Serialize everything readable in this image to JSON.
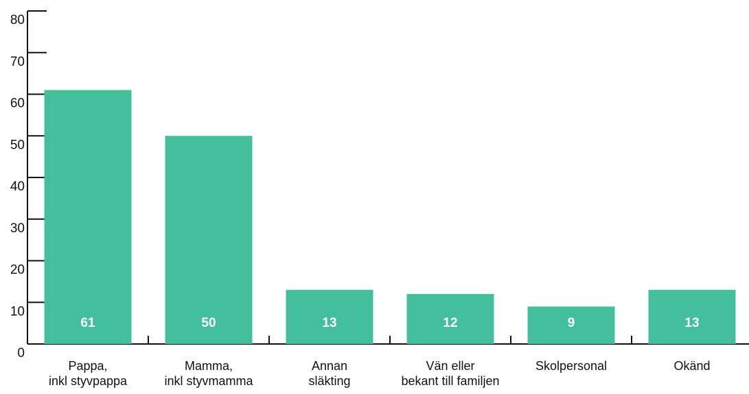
{
  "chart_data": {
    "type": "bar",
    "categories": [
      "Pappa,\ninkl styvpappa",
      "Mamma,\ninkl styvmamma",
      "Annan\nsläkting",
      "Vän eller\nbekant till familjen",
      "Skolpersonal",
      "Okänd"
    ],
    "values": [
      61,
      50,
      13,
      12,
      9,
      13
    ],
    "color": "#43bf9b",
    "ylim": [
      0,
      80
    ],
    "yticks": [
      0,
      10,
      20,
      30,
      40,
      50,
      60,
      70,
      80
    ]
  }
}
